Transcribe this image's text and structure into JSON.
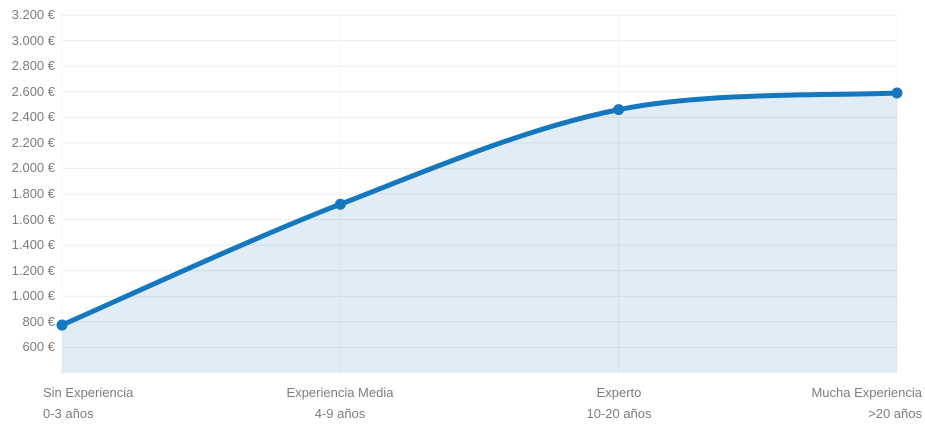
{
  "chart_data": {
    "type": "area",
    "title": "",
    "categories": [
      "Sin Experiencia",
      "Experiencia Media",
      "Experto",
      "Mucha Experiencia"
    ],
    "category_sublabels": [
      "0-3 años",
      "4-9 años",
      "10-20 años",
      ">20 años"
    ],
    "values": [
      775,
      1720,
      2460,
      2590
    ],
    "y_ticks": [
      3200,
      3000,
      2800,
      2600,
      2400,
      2200,
      2000,
      1800,
      1600,
      1400,
      1200,
      1000,
      800,
      600
    ],
    "y_tick_labels": [
      "3.200 €",
      "3.000 €",
      "2.800 €",
      "2.600 €",
      "2.400 €",
      "2.200 €",
      "2.000 €",
      "1.800 €",
      "1.600 €",
      "1.400 €",
      "1.200 €",
      "1.000 €",
      "800 €",
      "600 €"
    ],
    "ylim": [
      400,
      3200
    ],
    "xlabel": "",
    "ylabel": "",
    "grid": true,
    "legend": false,
    "colors": {
      "line": "#1577bd",
      "area_fill": "#1577bd",
      "area_opacity": "0.13",
      "gridline": "#ececec",
      "vertical_gridline": "#f4f4f4",
      "axis_text": "#7d7d7d",
      "background": "#ffffff"
    }
  }
}
